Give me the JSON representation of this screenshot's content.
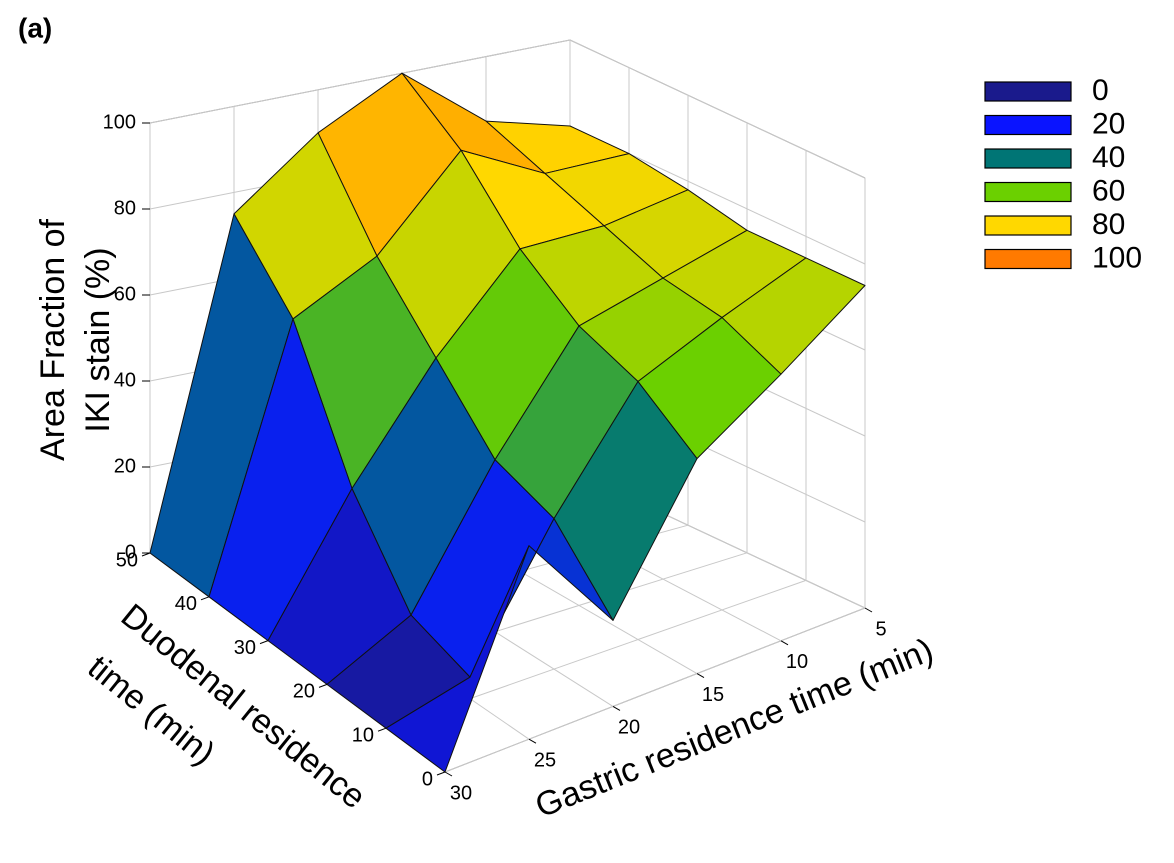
{
  "panel_label": "(a)",
  "chart_data": {
    "type": "surface3d",
    "xlabel": "Gastric residence time (min)",
    "ylabel": [
      "Duodenal residence",
      "time (min)"
    ],
    "zlabel": [
      "Area Fraction of",
      "IKI stain (%)"
    ],
    "x": [
      5,
      10,
      15,
      20,
      25,
      30
    ],
    "y": [
      0,
      10,
      20,
      30,
      40,
      50
    ],
    "z": [
      [
        75,
        62,
        50,
        20,
        45,
        0
      ],
      [
        75,
        68,
        60,
        35,
        5,
        0
      ],
      [
        75,
        70,
        65,
        40,
        10,
        0
      ],
      [
        78,
        75,
        75,
        55,
        30,
        0
      ],
      [
        80,
        80,
        90,
        70,
        60,
        0
      ],
      [
        80,
        85,
        100,
        90,
        75,
        0
      ]
    ],
    "xlim": [
      30,
      5
    ],
    "ylim": [
      0,
      50
    ],
    "zlim": [
      0,
      100
    ],
    "xticks": [
      5,
      10,
      15,
      20,
      25,
      30
    ],
    "yticks": [
      0,
      10,
      20,
      30,
      40,
      50
    ],
    "zticks": [
      0,
      20,
      40,
      60,
      80,
      100
    ],
    "grid": true,
    "legend": {
      "position": "right",
      "levels": [
        0,
        20,
        40,
        60,
        80,
        100
      ],
      "colors": [
        "#1a1a8c",
        "#0a14ff",
        "#007575",
        "#6bd000",
        "#ffd800",
        "#ff7a00"
      ]
    }
  }
}
